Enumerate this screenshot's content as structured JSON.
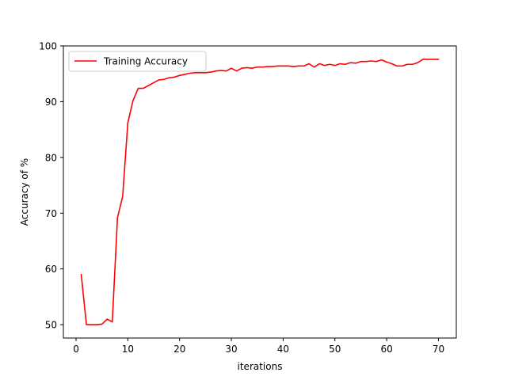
{
  "chart_data": {
    "type": "line",
    "title": "",
    "xlabel": "iterations",
    "ylabel": "Accuracy of %",
    "xlim": [
      -2.45,
      73.45
    ],
    "ylim": [
      47.6,
      100
    ],
    "xticks": [
      0,
      10,
      20,
      30,
      40,
      50,
      60,
      70
    ],
    "yticks": [
      50,
      60,
      70,
      80,
      90,
      100
    ],
    "grid": false,
    "legend": {
      "position": "top-left"
    },
    "series": [
      {
        "name": "Training Accuracy",
        "color": "#ff0000",
        "x": [
          1,
          2,
          3,
          4,
          5,
          6,
          7,
          8,
          9,
          10,
          11,
          12,
          13,
          14,
          15,
          16,
          17,
          18,
          19,
          20,
          21,
          22,
          23,
          24,
          25,
          26,
          27,
          28,
          29,
          30,
          31,
          32,
          33,
          34,
          35,
          36,
          37,
          38,
          39,
          40,
          41,
          42,
          43,
          44,
          45,
          46,
          47,
          48,
          49,
          50,
          51,
          52,
          53,
          54,
          55,
          56,
          57,
          58,
          59,
          60,
          61,
          62,
          63,
          64,
          65,
          66,
          67,
          68,
          69,
          70
        ],
        "y": [
          59.0,
          50.0,
          50.0,
          50.0,
          50.1,
          51.0,
          50.5,
          69.2,
          73.0,
          86.2,
          90.2,
          92.4,
          92.4,
          92.9,
          93.4,
          93.9,
          94.0,
          94.3,
          94.4,
          94.7,
          94.9,
          95.1,
          95.2,
          95.2,
          95.2,
          95.3,
          95.5,
          95.6,
          95.5,
          96.0,
          95.5,
          96.0,
          96.1,
          96.0,
          96.2,
          96.2,
          96.3,
          96.3,
          96.4,
          96.4,
          96.4,
          96.3,
          96.4,
          96.4,
          96.8,
          96.2,
          96.8,
          96.5,
          96.7,
          96.5,
          96.8,
          96.7,
          97.0,
          96.9,
          97.2,
          97.2,
          97.3,
          97.2,
          97.5,
          97.1,
          96.8,
          96.4,
          96.4,
          96.7,
          96.7,
          97.0,
          97.6,
          97.6,
          97.6,
          97.6
        ]
      }
    ]
  }
}
